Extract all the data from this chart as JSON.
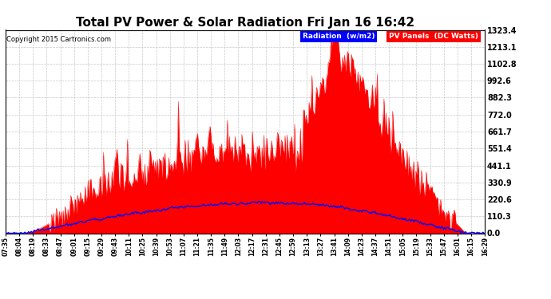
{
  "title": "Total PV Power & Solar Radiation Fri Jan 16 16:42",
  "copyright": "Copyright 2015 Cartronics.com",
  "legend_labels": [
    "Radiation  (w/m2)",
    "PV Panels  (DC Watts)"
  ],
  "legend_bg_colors": [
    "blue",
    "red"
  ],
  "yticks": [
    0.0,
    110.3,
    220.6,
    330.9,
    441.1,
    551.4,
    661.7,
    772.0,
    882.3,
    992.6,
    1102.8,
    1213.1,
    1323.4
  ],
  "ymax": 1323.4,
  "ymin": 0.0,
  "background_color": "#ffffff",
  "plot_bg_color": "#ffffff",
  "grid_color": "#bbbbbb",
  "pv_color": "red",
  "radiation_color": "blue",
  "title_fontsize": 11,
  "copyright_fontsize": 6
}
